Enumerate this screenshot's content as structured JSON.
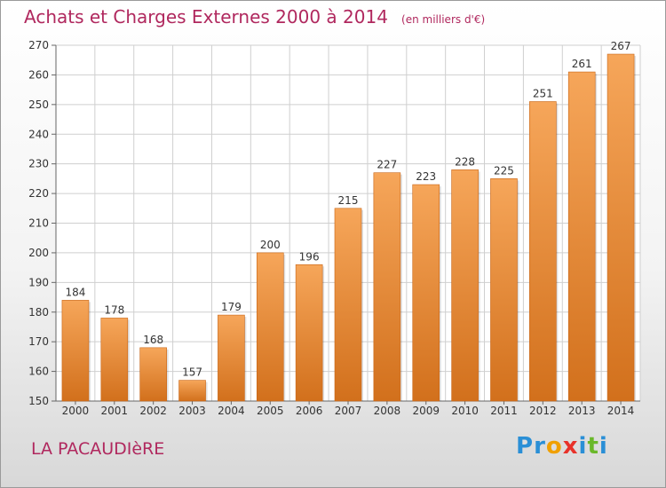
{
  "title": "Achats et Charges Externes 2000 à 2014",
  "unit_note": "(en milliers d'€)",
  "commune": "LA PACAUDIèRE",
  "logo": {
    "text": "Proxiti",
    "letters": [
      {
        "ch": "P",
        "color": "#2a8fd6"
      },
      {
        "ch": "r",
        "color": "#2a8fd6"
      },
      {
        "ch": "o",
        "color": "#f0a000"
      },
      {
        "ch": "x",
        "color": "#e8322a"
      },
      {
        "ch": "i",
        "color": "#2a8fd6"
      },
      {
        "ch": "t",
        "color": "#6ab82a"
      },
      {
        "ch": "i",
        "color": "#2a8fd6"
      }
    ]
  },
  "chart_data": {
    "type": "bar",
    "title": "Achats et Charges Externes 2000 à 2014",
    "subtitle": "(en milliers d'€)",
    "xlabel": "",
    "ylabel": "",
    "categories": [
      "2000",
      "2001",
      "2002",
      "2003",
      "2004",
      "2005",
      "2006",
      "2007",
      "2008",
      "2009",
      "2010",
      "2011",
      "2012",
      "2013",
      "2014"
    ],
    "values": [
      184,
      178,
      168,
      157,
      179,
      200,
      196,
      215,
      227,
      223,
      228,
      225,
      251,
      261,
      267
    ],
    "ylim": [
      150,
      270
    ],
    "yticks": [
      150,
      160,
      170,
      180,
      190,
      200,
      210,
      220,
      230,
      240,
      250,
      260,
      270
    ],
    "grid": true,
    "legend": "none",
    "colors": {
      "bar_light": "#f6a65a",
      "bar_dark": "#d2701c",
      "bar_edge": "#c86414",
      "grid": "#cfcfcf",
      "text": "#333333"
    }
  }
}
